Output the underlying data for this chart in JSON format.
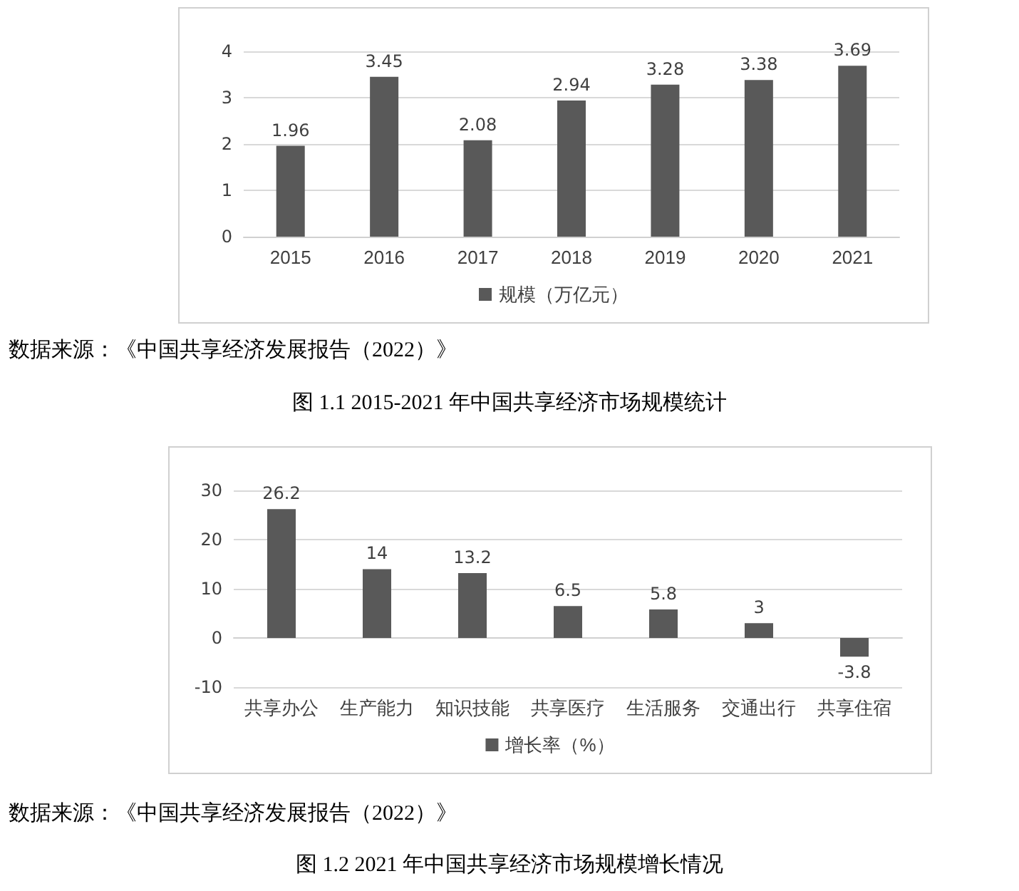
{
  "chart_data": [
    {
      "type": "bar",
      "categories": [
        "2015",
        "2016",
        "2017",
        "2018",
        "2019",
        "2020",
        "2021"
      ],
      "series": [
        {
          "name": "规模（万亿元）",
          "color": "#595959",
          "values": [
            1.96,
            3.45,
            2.08,
            2.94,
            3.28,
            3.38,
            3.69
          ]
        }
      ],
      "ylim": [
        0,
        4
      ],
      "yticks": [
        0,
        1,
        2,
        3,
        4
      ],
      "grid": "y",
      "legend": "bottom",
      "data_labels": true,
      "annotations": [
        "数据来源：《中国共享经济发展报告（2022）》",
        "图 1.1 2015-2021 年中国共享经济市场规模统计"
      ]
    },
    {
      "type": "bar",
      "categories": [
        "共享办公",
        "生产能力",
        "知识技能",
        "共享医疗",
        "生活服务",
        "交通出行",
        "共享住宿"
      ],
      "series": [
        {
          "name": "增长率（%）",
          "color": "#595959",
          "values": [
            26.2,
            14,
            13.2,
            6.5,
            5.8,
            3,
            -3.8
          ]
        }
      ],
      "ylim": [
        -10,
        30
      ],
      "yticks": [
        -10,
        0,
        10,
        20,
        30
      ],
      "grid": "y",
      "legend": "bottom",
      "data_labels": true,
      "annotations": [
        "数据来源：《中国共享经济发展报告（2022）》",
        "图 1.2 2021 年中国共享经济市场规模增长情况"
      ]
    }
  ]
}
